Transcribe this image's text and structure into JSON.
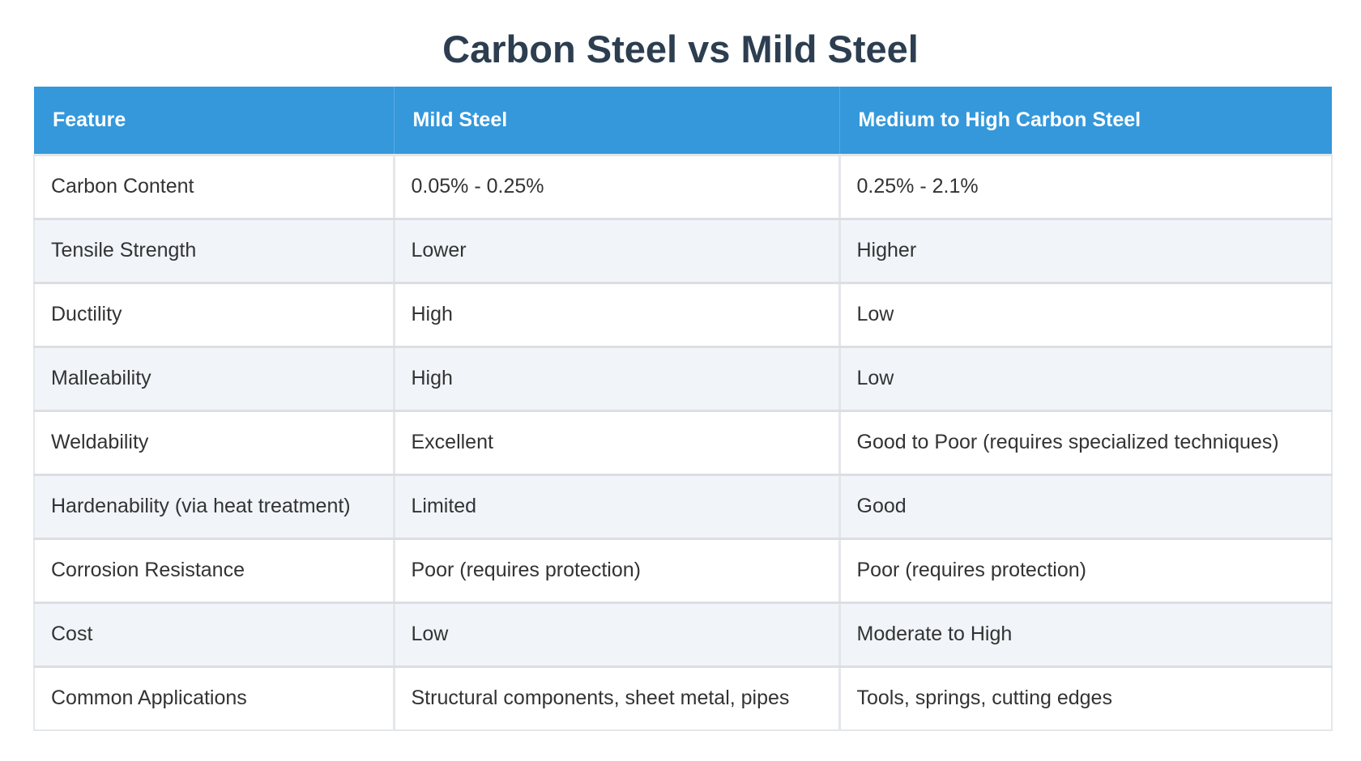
{
  "title": "Carbon Steel vs Mild Steel",
  "table": {
    "headers": [
      "Feature",
      "Mild Steel",
      "Medium to High Carbon Steel"
    ],
    "rows": [
      [
        "Carbon Content",
        "0.05% - 0.25%",
        "0.25% - 2.1%"
      ],
      [
        "Tensile Strength",
        "Lower",
        "Higher"
      ],
      [
        "Ductility",
        "High",
        "Low"
      ],
      [
        "Malleability",
        "High",
        "Low"
      ],
      [
        "Weldability",
        "Excellent",
        "Good to Poor (requires specialized techniques)"
      ],
      [
        "Hardenability (via heat treatment)",
        "Limited",
        "Good"
      ],
      [
        "Corrosion Resistance",
        "Poor (requires protection)",
        "Poor (requires protection)"
      ],
      [
        "Cost",
        "Low",
        "Moderate to High"
      ],
      [
        "Common Applications",
        "Structural components, sheet metal, pipes",
        "Tools, springs, cutting edges"
      ]
    ]
  },
  "colors": {
    "header_bg": "#3498db",
    "title": "#2c3e50",
    "row_alt": "#f1f5f9"
  }
}
